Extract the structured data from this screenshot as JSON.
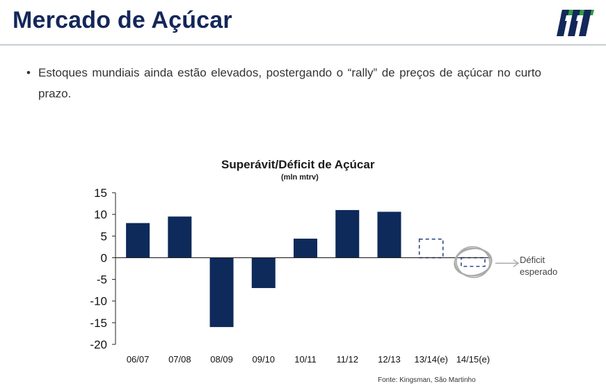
{
  "header": {
    "title": "Mercado de Açúcar",
    "logo_icon": "company-logo-icon"
  },
  "bullet": {
    "text": "Estoques mundiais ainda estão elevados, postergando o “rally” de preços de açúcar no curto prazo."
  },
  "chart_data": {
    "type": "bar",
    "title": "Superávit/Déficit de Açúcar",
    "subtitle": "(mln mtrv)",
    "categories": [
      "06/07",
      "07/08",
      "08/09",
      "09/10",
      "10/11",
      "11/12",
      "12/13",
      "13/14(e)",
      "14/15(e)"
    ],
    "values": [
      8,
      9.5,
      -16,
      -7,
      4.4,
      11,
      10.6,
      4.3,
      -2
    ],
    "estimated": [
      false,
      false,
      false,
      false,
      false,
      false,
      false,
      true,
      true
    ],
    "ylim": [
      -20,
      15
    ],
    "yticks": [
      15,
      10,
      5,
      0,
      -5,
      -10,
      -15,
      -20
    ],
    "grid": false,
    "bar_color": "#0d2a5a",
    "annotation": {
      "target": "14/15(e)",
      "line1": "Déficit",
      "line2": "esperado"
    },
    "source": "Fonte: Kingsman, São Martinho"
  }
}
